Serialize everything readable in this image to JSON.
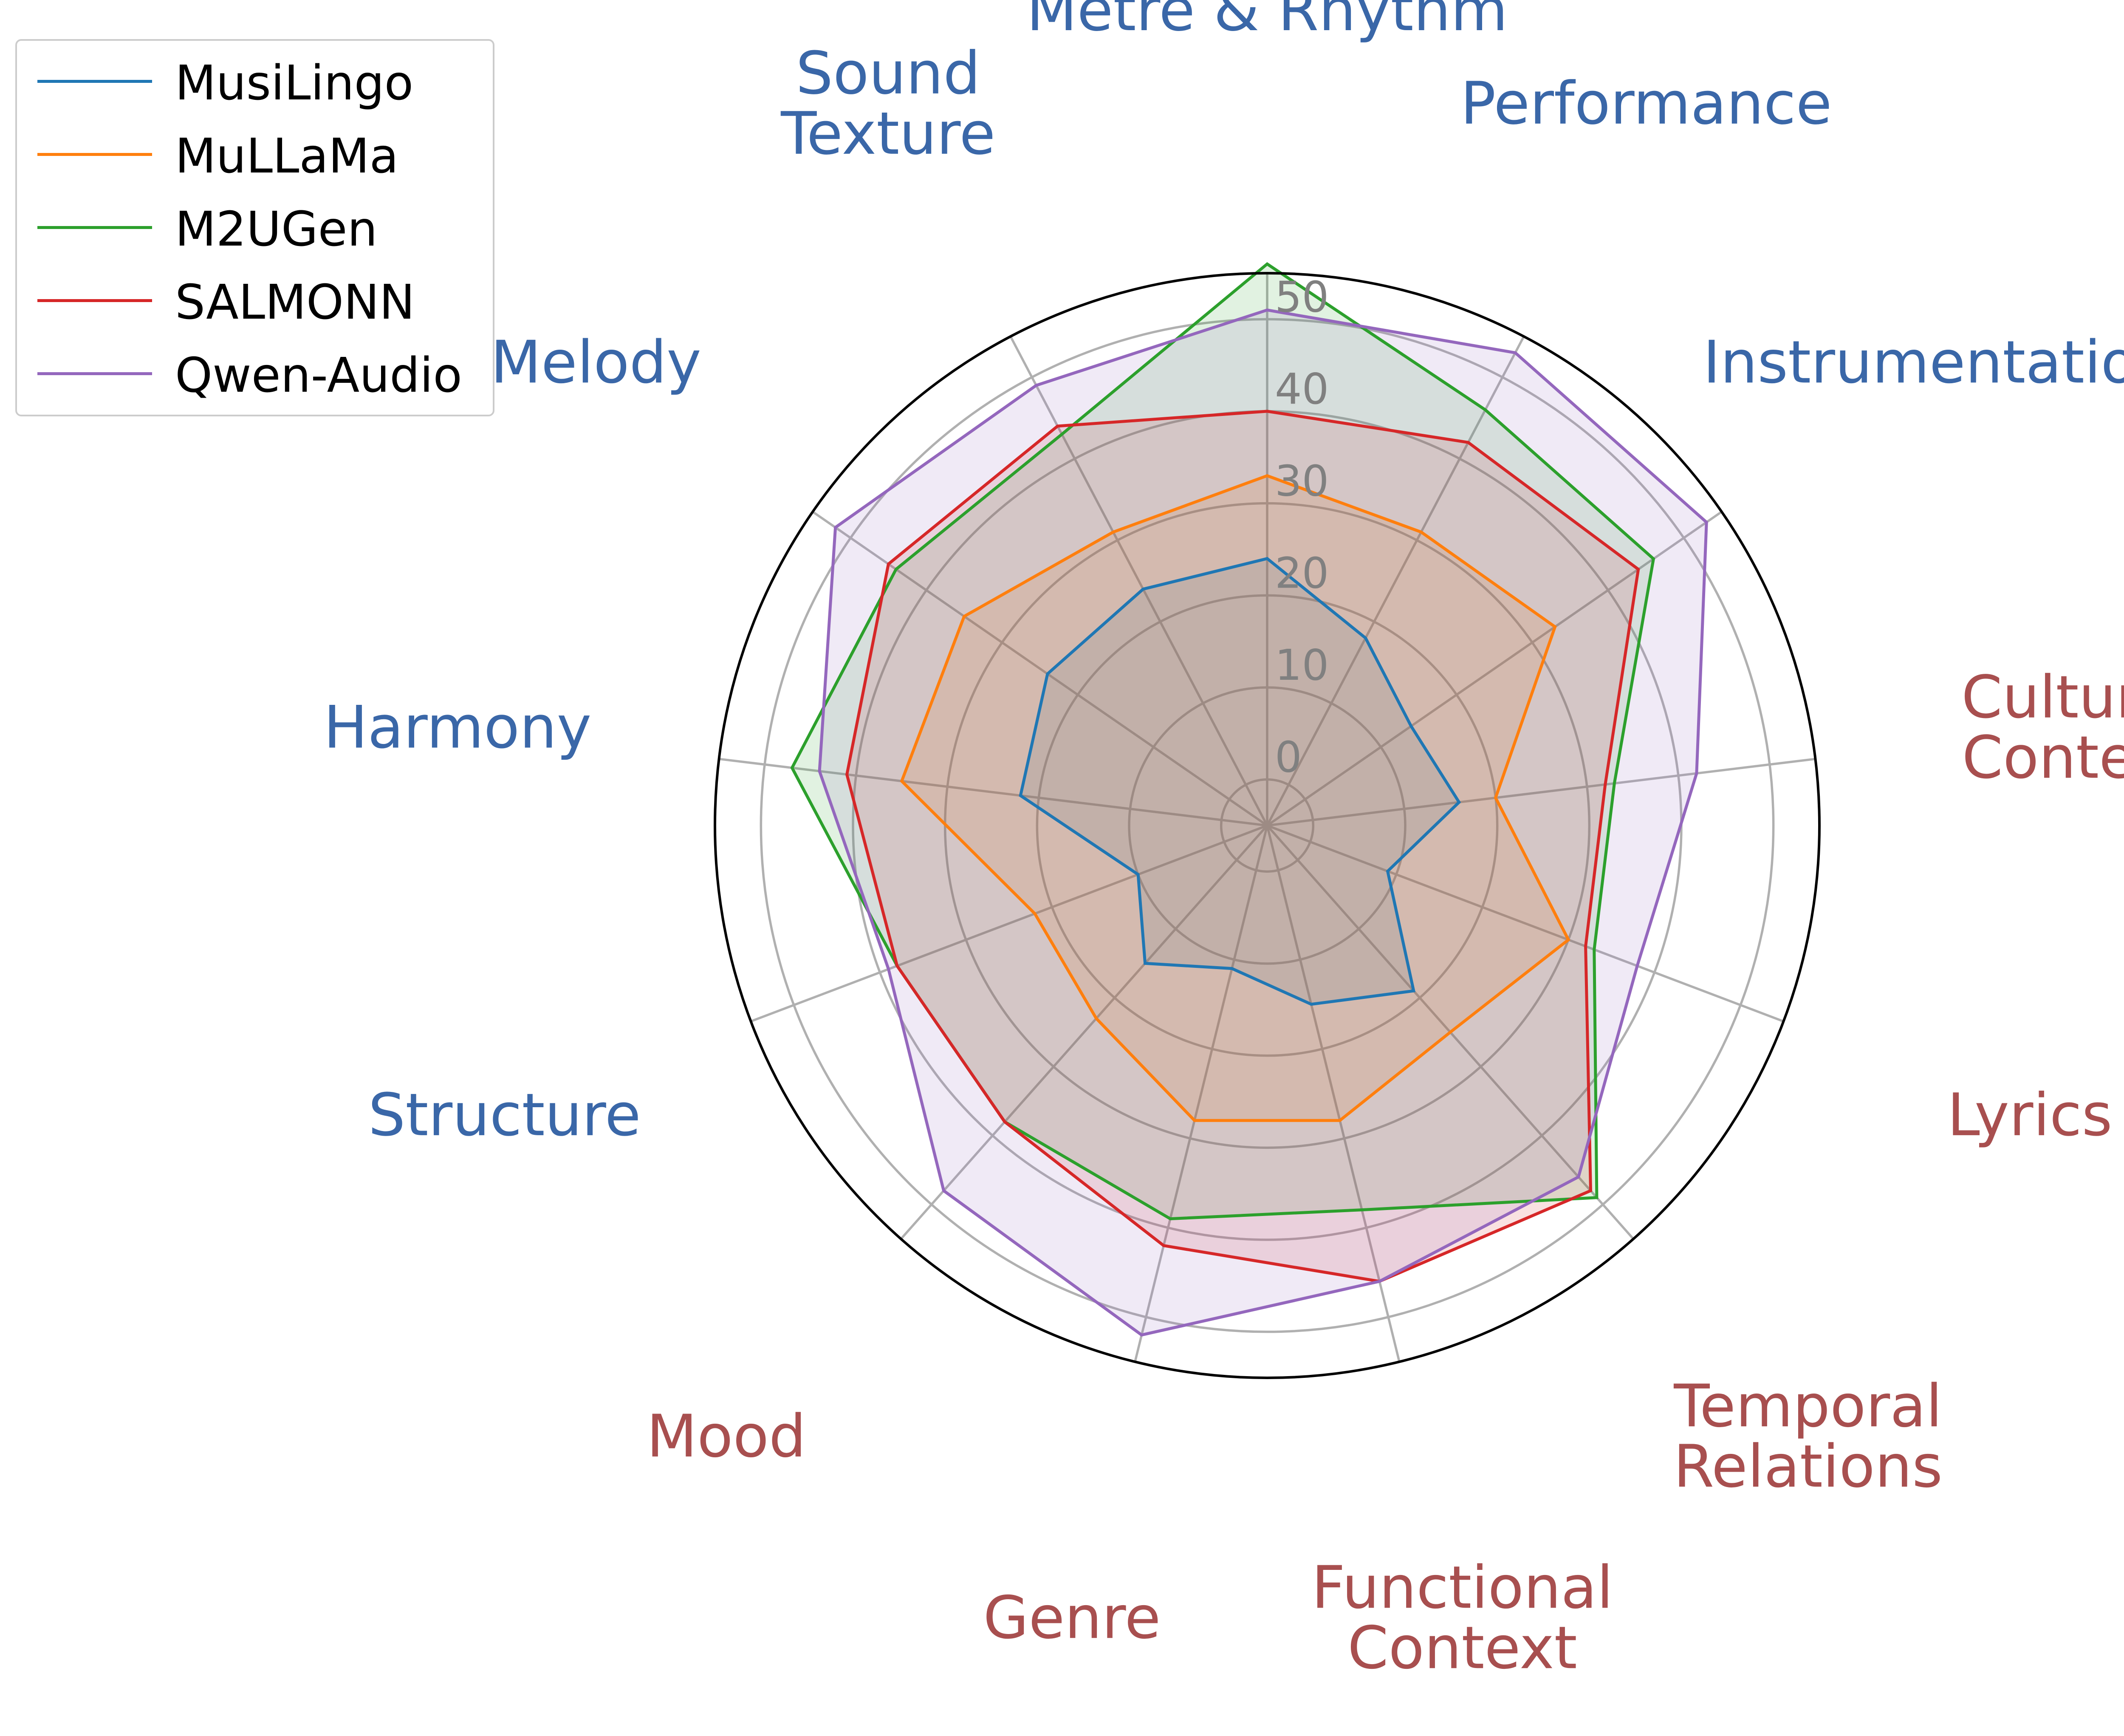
{
  "chart_data": {
    "type": "radar",
    "categories": [
      "Metre & Rhythm",
      "Performance",
      "Instrumentation",
      "Cultural\nContext",
      "Lyrics",
      "Temporal\nRelations",
      "Functional\nContext",
      "Genre",
      "Mood",
      "Structure",
      "Harmony",
      "Melody",
      "Sound\nTexture"
    ],
    "category_groups": {
      "technical": [
        "Metre & Rhythm",
        "Performance",
        "Instrumentation",
        "Structure",
        "Harmony",
        "Melody",
        "Sound\nTexture"
      ],
      "contextual": [
        "Cultural\nContext",
        "Lyrics",
        "Temporal\nRelations",
        "Functional\nContext",
        "Genre",
        "Mood"
      ]
    },
    "category_colors": {
      "technical": "#3a67a8",
      "contextual": "#a84f4f"
    },
    "radial_ticks": [
      "0",
      "10",
      "20",
      "30",
      "40",
      "50"
    ],
    "radial_tick_values": [
      0,
      10,
      20,
      30,
      40,
      50
    ],
    "rlim": [
      -5,
      55
    ],
    "grid": true,
    "legend_position": "top-left",
    "series": [
      {
        "name": "MusiLingo",
        "color": "#1f77b4",
        "values": [
          24,
          18,
          14,
          16,
          9,
          19,
          15,
          11,
          15,
          10,
          22,
          24,
          24
        ]
      },
      {
        "name": "MuLLaMa",
        "color": "#ff7f0e",
        "values": [
          33,
          31,
          33,
          20,
          30,
          25,
          28,
          28,
          23,
          22,
          35,
          35,
          31
        ]
      },
      {
        "name": "M2UGen",
        "color": "#2ca02c",
        "values": [
          56,
          46,
          46,
          33,
          33,
          49,
          38,
          39,
          38,
          38,
          47,
          44,
          43
        ]
      },
      {
        "name": "SALMONN",
        "color": "#d62728",
        "values": [
          40,
          42,
          44,
          32,
          32,
          48,
          46,
          42,
          38,
          38,
          41,
          45,
          44
        ]
      },
      {
        "name": "Qwen-Audio",
        "color": "#9467bd",
        "values": [
          51,
          53,
          53,
          42,
          38,
          46,
          46,
          52,
          48,
          39,
          44,
          52,
          49
        ]
      }
    ]
  }
}
